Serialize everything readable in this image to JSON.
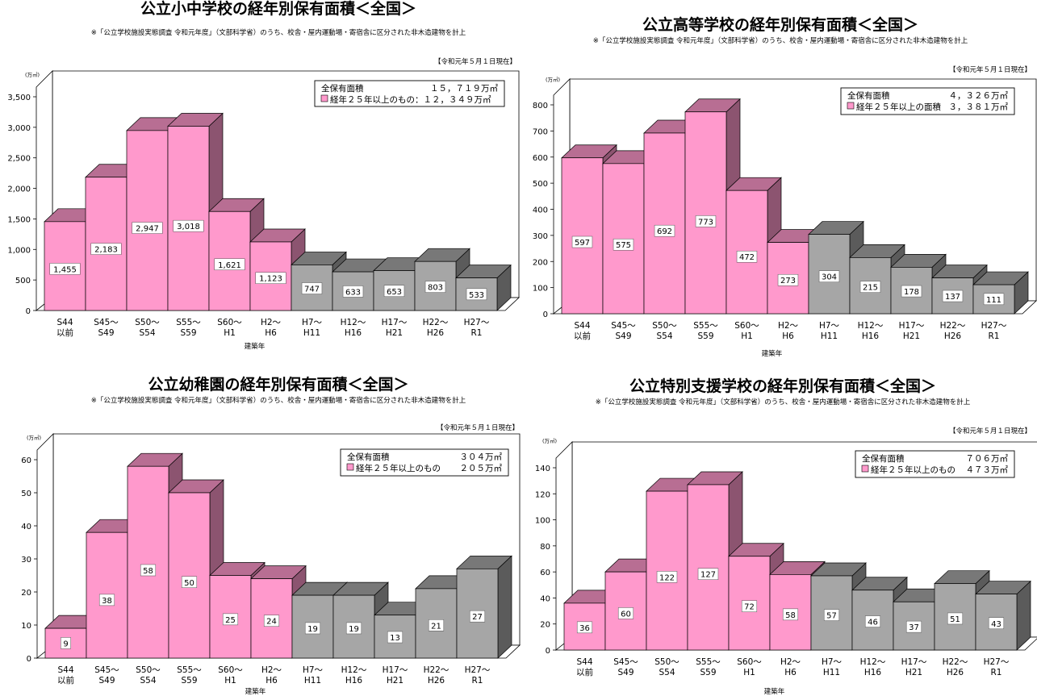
{
  "chart_data": [
    {
      "type": "bar",
      "title": "公立小中学校の経年別保有面積＜全国＞",
      "subtitle": "※「公立学校施設実態調査 令和元年度」（文部科学省）のうち、校舎・屋内運動場・寄宿舎に区分された非木造建物を計上",
      "as_of": "【令和元年５月１日現在】",
      "unit": "(万㎡)",
      "xlabel": "建築年",
      "categories": [
        [
          "S44",
          "以前"
        ],
        [
          "S45〜",
          "S49"
        ],
        [
          "S50〜",
          "S54"
        ],
        [
          "S55〜",
          "S59"
        ],
        [
          "S60〜",
          "H1"
        ],
        [
          "H2〜",
          "H6"
        ],
        [
          "H7〜",
          "H11"
        ],
        [
          "H12〜",
          "H16"
        ],
        [
          "H17〜",
          "H21"
        ],
        [
          "H22〜",
          "H26"
        ],
        [
          "H27〜",
          "R1"
        ]
      ],
      "values": [
        1455,
        2183,
        2947,
        3018,
        1621,
        1123,
        747,
        633,
        653,
        803,
        533
      ],
      "value_labels": [
        "1,455",
        "2,183",
        "2,947",
        "3,018",
        "1,621",
        "1,123",
        "747",
        "633",
        "653",
        "803",
        "533"
      ],
      "ylim": [
        0,
        3500
      ],
      "yticks": [
        "0",
        "500",
        "1,000",
        "1,500",
        "2,000",
        "2,500",
        "3,000",
        "3,500"
      ],
      "legend": {
        "total_label": "全保有面積",
        "total_value": "１５，７１９万㎡",
        "aged_label": "経年２５年以上のもの：１２，３４９万㎡",
        "aged_value": ""
      },
      "colors": {
        "aged": "#ff99cc",
        "newer": "#a6a6a6"
      },
      "aged_count": 6
    },
    {
      "type": "bar",
      "title": "公立高等学校の経年別保有面積＜全国＞",
      "subtitle": "※「公立学校施設実態調査 令和元年度」（文部科学省）のうち、校舎・屋内運動場・寄宿舎に区分された非木造建物を計上",
      "as_of": "【令和元年５月１日現在】",
      "unit": "(万㎡)",
      "xlabel": "建築年",
      "categories": [
        [
          "S44",
          "以前"
        ],
        [
          "S45〜",
          "S49"
        ],
        [
          "S50〜",
          "S54"
        ],
        [
          "S55〜",
          "S59"
        ],
        [
          "S60〜",
          "H1"
        ],
        [
          "H2〜",
          "H6"
        ],
        [
          "H7〜",
          "H11"
        ],
        [
          "H12〜",
          "H16"
        ],
        [
          "H17〜",
          "H21"
        ],
        [
          "H22〜",
          "H26"
        ],
        [
          "H27〜",
          "R1"
        ]
      ],
      "values": [
        597,
        575,
        692,
        773,
        472,
        273,
        304,
        215,
        178,
        137,
        111
      ],
      "value_labels": [
        "597",
        "575",
        "692",
        "773",
        "472",
        "273",
        "304",
        "215",
        "178",
        "137",
        "111"
      ],
      "ylim": [
        0,
        800
      ],
      "yticks": [
        "0",
        "100",
        "200",
        "300",
        "400",
        "500",
        "600",
        "700",
        "800"
      ],
      "legend": {
        "total_label": "全保有面積",
        "total_value": "４，３２６万㎡",
        "aged_label": "経年２５年以上の面積",
        "aged_value": "３，３８１万㎡"
      },
      "colors": {
        "aged": "#ff99cc",
        "newer": "#a6a6a6"
      },
      "aged_count": 6
    },
    {
      "type": "bar",
      "title": "公立幼稚園の経年別保有面積＜全国＞",
      "subtitle": "※「公立学校施設実態調査 令和元年度」（文部科学省）のうち、校舎・屋内運動場・寄宿舎に区分された非木造建物を計上",
      "as_of": "【令和元年５月１日現在】",
      "unit": "(万㎡)",
      "xlabel": "建築年",
      "categories": [
        [
          "S44",
          "以前"
        ],
        [
          "S45〜",
          "S49"
        ],
        [
          "S50〜",
          "S54"
        ],
        [
          "S55〜",
          "S59"
        ],
        [
          "S60〜",
          "H1"
        ],
        [
          "H2〜",
          "H6"
        ],
        [
          "H7〜",
          "H11"
        ],
        [
          "H12〜",
          "H16"
        ],
        [
          "H17〜",
          "H21"
        ],
        [
          "H22〜",
          "H26"
        ],
        [
          "H27〜",
          "R1"
        ]
      ],
      "values": [
        9,
        38,
        58,
        50,
        25,
        24,
        19,
        19,
        13,
        21,
        27
      ],
      "value_labels": [
        "9",
        "38",
        "58",
        "50",
        "25",
        "24",
        "19",
        "19",
        "13",
        "21",
        "27"
      ],
      "ylim": [
        0,
        60
      ],
      "yticks": [
        "0",
        "10",
        "20",
        "30",
        "40",
        "50",
        "60"
      ],
      "legend": {
        "total_label": "全保有面積",
        "total_value": "３０４万㎡",
        "aged_label": "経年２５年以上のもの",
        "aged_value": "２０５万㎡"
      },
      "colors": {
        "aged": "#ff99cc",
        "newer": "#a6a6a6"
      },
      "aged_count": 6
    },
    {
      "type": "bar",
      "title": "公立特別支援学校の経年別保有面積＜全国＞",
      "subtitle": "※「公立学校施設実態調査 令和元年度」（文部科学省）のうち、校舎・屋内運動場・寄宿舎に区分された非木造建物を計上",
      "as_of": "【令和元年５月１日現在】",
      "unit": "(万㎡)",
      "xlabel": "建築年",
      "categories": [
        [
          "S44",
          "以前"
        ],
        [
          "S45〜",
          "S49"
        ],
        [
          "S50〜",
          "S54"
        ],
        [
          "S55〜",
          "S59"
        ],
        [
          "S60〜",
          "H1"
        ],
        [
          "H2〜",
          "H6"
        ],
        [
          "H7〜",
          "H11"
        ],
        [
          "H12〜",
          "H16"
        ],
        [
          "H17〜",
          "H21"
        ],
        [
          "H22〜",
          "H26"
        ],
        [
          "H27〜",
          "R1"
        ]
      ],
      "values": [
        36,
        60,
        122,
        127,
        72,
        58,
        57,
        46,
        37,
        51,
        43
      ],
      "value_labels": [
        "36",
        "60",
        "122",
        "127",
        "72",
        "58",
        "57",
        "46",
        "37",
        "51",
        "43"
      ],
      "ylim": [
        0,
        140
      ],
      "yticks": [
        "0",
        "20",
        "40",
        "60",
        "80",
        "100",
        "120",
        "140"
      ],
      "legend": {
        "total_label": "全保有面積",
        "total_value": "７０６万㎡",
        "aged_label": "経年２５年以上のもの",
        "aged_value": "４７３万㎡"
      },
      "colors": {
        "aged": "#ff99cc",
        "newer": "#a6a6a6"
      },
      "aged_count": 6
    }
  ]
}
